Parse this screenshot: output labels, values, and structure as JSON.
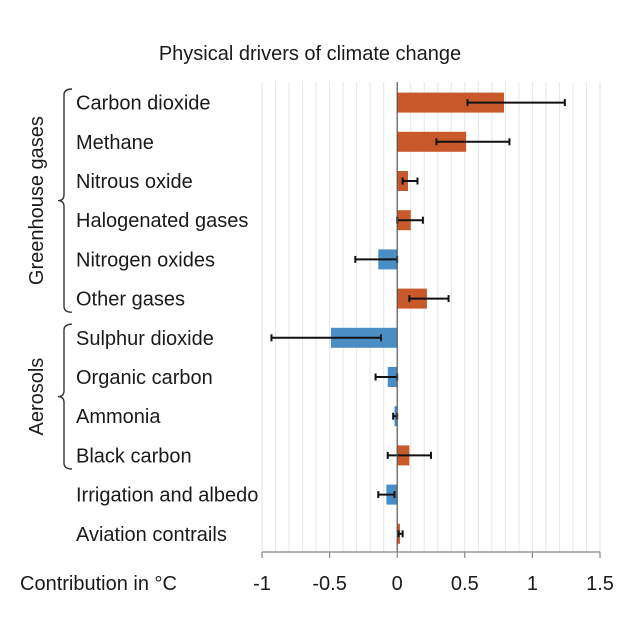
{
  "chart_data": {
    "type": "bar",
    "orientation": "horizontal",
    "title": "Physical drivers of climate change",
    "xlabel": "Contribution in °C",
    "xlim": [
      -1,
      1.5
    ],
    "xticks": [
      -1,
      -0.5,
      0,
      0.5,
      1,
      1.5
    ],
    "xtick_labels": [
      "-1",
      "-0.5",
      "0",
      "0.5",
      "1",
      "1.5"
    ],
    "grid": true,
    "categories": [
      "Carbon dioxide",
      "Methane",
      "Nitrous oxide",
      "Halogenated gases",
      "Nitrogen oxides",
      "Other gases",
      "Sulphur dioxide",
      "Organic carbon",
      "Ammonia",
      "Black carbon",
      "Irrigation and albedo",
      "Aviation contrails"
    ],
    "values": [
      0.79,
      0.51,
      0.08,
      0.1,
      -0.14,
      0.22,
      -0.49,
      -0.07,
      -0.02,
      0.09,
      -0.08,
      0.02
    ],
    "error_low": [
      0.52,
      0.29,
      0.04,
      0.0,
      -0.31,
      0.09,
      -0.93,
      -0.16,
      -0.03,
      -0.07,
      -0.14,
      0.01
    ],
    "error_high": [
      1.24,
      0.83,
      0.15,
      0.19,
      0.0,
      0.38,
      -0.12,
      0.0,
      0.0,
      0.25,
      -0.02,
      0.04
    ],
    "groups": [
      {
        "label": "Greenhouse gases",
        "from": 0,
        "to": 5
      },
      {
        "label": "Aerosols",
        "from": 6,
        "to": 9
      }
    ],
    "colors": {
      "positive": "#c8592a",
      "negative": "#4a8ec6",
      "error": "#111111",
      "grid": "#e6e6e6"
    }
  }
}
